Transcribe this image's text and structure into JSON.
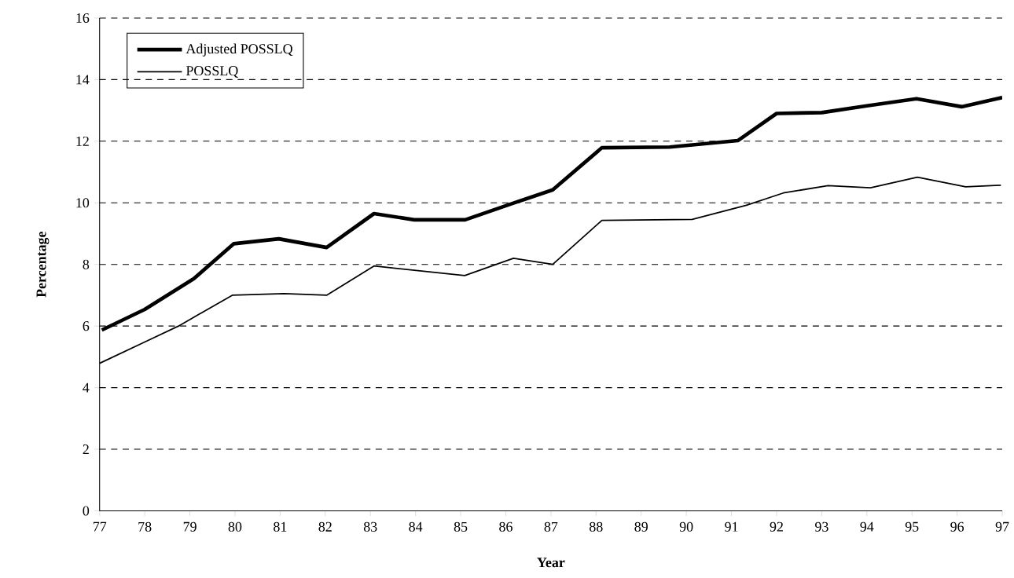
{
  "chart_data": {
    "type": "line",
    "xlabel": "Year",
    "ylabel": "Percentage",
    "series": [
      {
        "name": "Adjusted POSSLQ",
        "color": "#000000",
        "x": [
          77.05,
          78.0,
          79.09,
          79.97,
          80.97,
          82.03,
          83.08,
          83.97,
          85.1,
          86.17,
          87.04,
          88.13,
          89.63,
          91.14,
          92.0,
          93.0,
          94.0,
          95.1,
          96.1,
          97.0
        ],
        "values": [
          5.87,
          6.54,
          7.54,
          8.67,
          8.83,
          8.55,
          9.65,
          9.45,
          9.45,
          9.99,
          10.42,
          11.79,
          11.81,
          12.02,
          12.9,
          12.93,
          13.15,
          13.38,
          13.12,
          13.42
        ]
      },
      {
        "name": "POSSLQ",
        "color": "#000000",
        "x": [
          77.0,
          78.0,
          78.75,
          79.94,
          81.09,
          82.03,
          83.08,
          85.09,
          86.17,
          87.04,
          88.13,
          90.13,
          91.33,
          92.15,
          93.14,
          94.08,
          95.12,
          96.19,
          96.97
        ],
        "values": [
          4.79,
          5.48,
          6.0,
          7.0,
          7.05,
          7.0,
          7.95,
          7.64,
          8.2,
          8.0,
          9.43,
          9.46,
          9.92,
          10.32,
          10.56,
          10.49,
          10.83,
          10.52,
          10.57
        ]
      }
    ],
    "xlim": [
      77,
      97
    ],
    "xticks": [
      77,
      78,
      79,
      80,
      81,
      82,
      83,
      84,
      85,
      86,
      87,
      88,
      89,
      90,
      91,
      92,
      93,
      94,
      95,
      96,
      97
    ],
    "ylim": [
      0,
      16
    ],
    "yticks": [
      0,
      2,
      4,
      6,
      8,
      10,
      12,
      14,
      16
    ],
    "grid": "y",
    "legend": "top left",
    "marker": "none",
    "line_style": "solid"
  }
}
